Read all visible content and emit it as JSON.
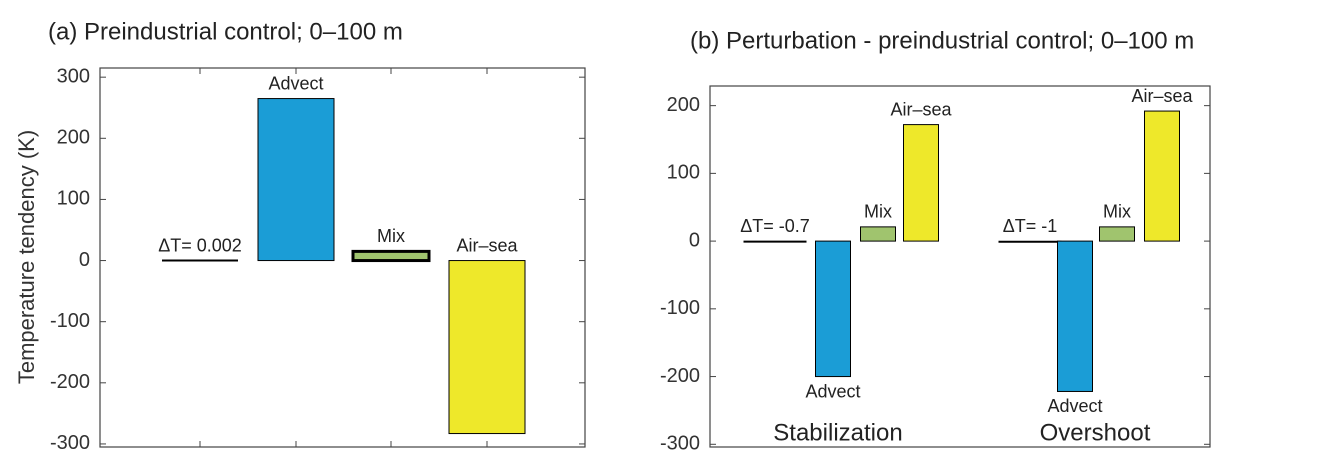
{
  "chart_data": [
    {
      "type": "bar",
      "title": "(a) Preindustrial control; 0–100 m",
      "y_label": "Temperature tendency (K)",
      "categories": [
        "ΔT= 0.002",
        "Advect",
        "Mix",
        "Air–sea"
      ],
      "values": [
        0.002,
        265,
        15,
        -283
      ],
      "colors": [
        "#000000",
        "#1b9dd6",
        "#a0c46e",
        "#eee82a"
      ],
      "ylim": [
        -305,
        315
      ],
      "yticks": [
        -300,
        -200,
        -100,
        0,
        100,
        200,
        300
      ]
    },
    {
      "type": "grouped_bar",
      "title": "(b) Perturbation - preindustrial control; 0–100 m",
      "categories": [
        "Stabilization",
        "Overshoot"
      ],
      "series": [
        {
          "color": "#000000",
          "values": [
            -0.7,
            -1
          ],
          "value_labels": [
            "ΔT= -0.7",
            "ΔT= -1"
          ]
        },
        {
          "name": "Advect",
          "color": "#1b9dd6",
          "values": [
            -200,
            -222
          ]
        },
        {
          "name": "Mix",
          "color": "#a0c46e",
          "values": [
            21,
            21
          ]
        },
        {
          "name": "Air–sea",
          "color": "#eee82a",
          "values": [
            172,
            192
          ]
        }
      ],
      "ylim": [
        -304,
        229
      ],
      "yticks": [
        -300,
        -200,
        -100,
        0,
        100,
        200
      ]
    }
  ]
}
